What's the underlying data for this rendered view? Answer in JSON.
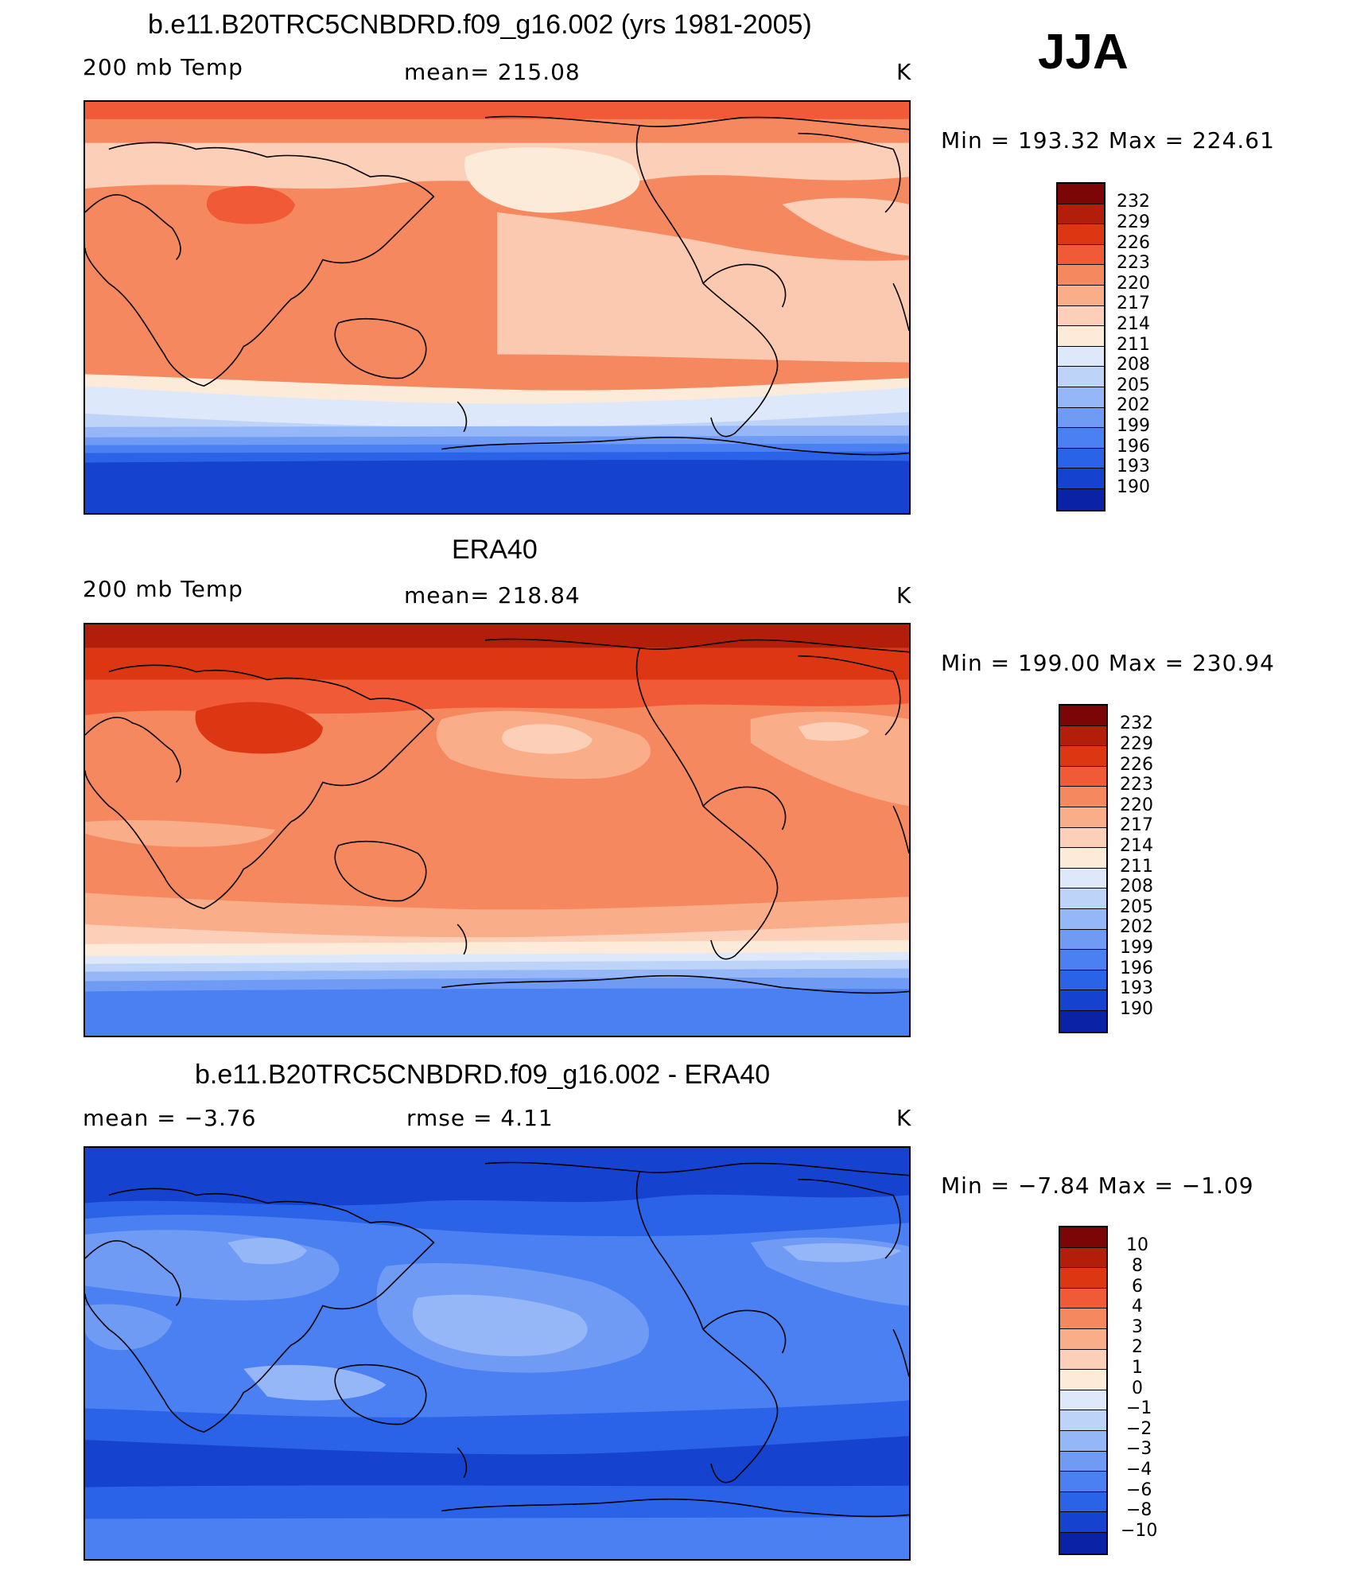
{
  "season": "JJA",
  "palette": [
    "#08036b",
    "#0a22a6",
    "#1543d0",
    "#2b63e8",
    "#4a80f2",
    "#6f9bf5",
    "#95b6f7",
    "#bed3f8",
    "#dde9fa",
    "#fdebd9",
    "#fcd0b8",
    "#f9ad88",
    "#f6885f",
    "#f05a36",
    "#dc3613",
    "#b31e0a",
    "#7c0606"
  ],
  "panels": [
    {
      "title": "b.e11.B20TRC5CNBDRD.f09_g16.002 (yrs 1981-2005)",
      "left_label": "200 mb Temp",
      "mid_label": "mean=  215.08",
      "units": "K",
      "minmax": "Min  =  193.32  Max  =  224.61",
      "ticks": [
        "232",
        "229",
        "226",
        "223",
        "220",
        "217",
        "214",
        "211",
        "208",
        "205",
        "202",
        "199",
        "196",
        "193",
        "190"
      ]
    },
    {
      "title": "ERA40",
      "left_label": "200 mb Temp",
      "mid_label": "mean=  218.84",
      "units": "K",
      "minmax": "Min  =  199.00  Max  =  230.94",
      "ticks": [
        "232",
        "229",
        "226",
        "223",
        "220",
        "217",
        "214",
        "211",
        "208",
        "205",
        "202",
        "199",
        "196",
        "193",
        "190"
      ]
    },
    {
      "title": "b.e11.B20TRC5CNBDRD.f09_g16.002 - ERA40",
      "left_label": "mean  =    −3.76",
      "mid_label": "rmse  =     4.11",
      "units": "K",
      "minmax": "Min  =    −7.84  Max  =    −1.09",
      "ticks": [
        "10",
        "8",
        "6",
        "4",
        "3",
        "2",
        "1",
        "0",
        "−1",
        "−2",
        "−3",
        "−4",
        "−6",
        "−8",
        "−10"
      ]
    }
  ]
}
